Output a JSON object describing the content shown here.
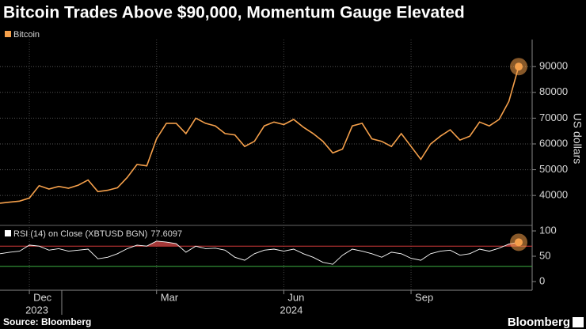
{
  "title": "Bitcoin Trades Above $90,000, Momentum Gauge Elevated",
  "source": "Source: Bloomberg",
  "logo": "Bloomberg",
  "chart_data": [
    {
      "type": "line",
      "y_label": "US dollars",
      "ylim": [
        29000,
        100500
      ],
      "yticks": [
        40000,
        50000,
        60000,
        70000,
        80000,
        90000
      ],
      "grid": true,
      "legend": "top-left",
      "series": [
        {
          "name": "Bitcoin",
          "color": "#f5a04b",
          "values": [
            37000,
            37400,
            37800,
            39000,
            43800,
            42500,
            43500,
            42800,
            44000,
            46000,
            41500,
            42000,
            43000,
            47000,
            52000,
            51500,
            62000,
            68000,
            68000,
            64000,
            70000,
            68000,
            67000,
            64000,
            63500,
            59000,
            61000,
            67000,
            68500,
            67500,
            69500,
            66500,
            64000,
            61000,
            56500,
            58000,
            67000,
            68000,
            62000,
            61000,
            59000,
            64000,
            59000,
            54000,
            60000,
            63000,
            65500,
            61500,
            63000,
            68500,
            67000,
            69500,
            76500,
            90000
          ]
        }
      ]
    },
    {
      "type": "line",
      "title": "RSI (14)  on Close (XBTUSD BGN)",
      "ylim": [
        0,
        100
      ],
      "yticks": [
        0,
        50,
        100
      ],
      "overbought": 70,
      "oversold": 30,
      "categories": [
        null,
        null,
        null,
        "Dec",
        null,
        null,
        null,
        null,
        null,
        null,
        null,
        null,
        null,
        null,
        null,
        null,
        "Mar",
        null,
        null,
        null,
        null,
        null,
        null,
        null,
        null,
        null,
        null,
        null,
        null,
        "Jun",
        null,
        null,
        null,
        null,
        null,
        null,
        null,
        null,
        null,
        null,
        null,
        null,
        "Sep",
        null,
        null,
        null,
        null,
        null,
        null,
        null,
        null,
        null,
        null,
        null
      ],
      "categories_year": [
        null,
        null,
        null,
        "2023",
        null,
        null,
        null,
        null,
        null,
        null,
        null,
        null,
        null,
        null,
        null,
        null,
        null,
        null,
        null,
        null,
        null,
        null,
        null,
        null,
        null,
        null,
        null,
        null,
        null,
        "2024",
        null,
        null,
        null,
        null,
        null,
        null,
        null,
        null,
        null,
        null,
        null,
        null,
        null,
        null,
        null,
        null,
        null,
        null,
        null,
        null,
        null,
        null,
        null,
        null
      ],
      "series": [
        {
          "name": "RSI",
          "color": "#ffffff",
          "values": [
            55,
            58,
            60,
            72,
            70,
            62,
            65,
            60,
            62,
            64,
            45,
            48,
            55,
            65,
            72,
            70,
            80,
            78,
            75,
            58,
            70,
            65,
            66,
            62,
            48,
            42,
            55,
            62,
            64,
            60,
            64,
            55,
            48,
            38,
            34,
            52,
            64,
            60,
            55,
            48,
            58,
            55,
            46,
            42,
            55,
            60,
            62,
            52,
            55,
            64,
            60,
            66,
            74,
            77.6097
          ]
        }
      ]
    }
  ]
}
